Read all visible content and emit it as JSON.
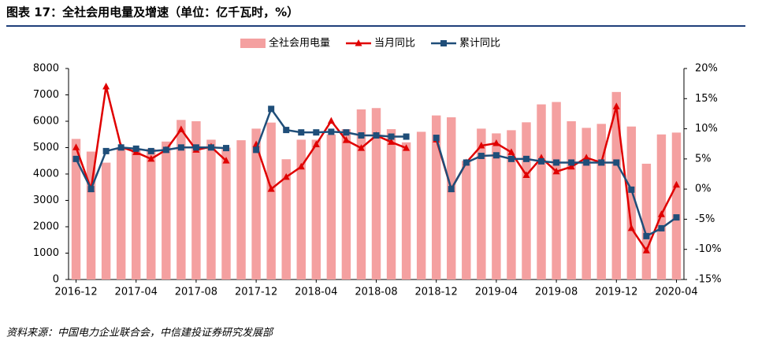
{
  "header": {
    "title": "图表 17：全社会用电量及增速（单位：亿千瓦时，%）"
  },
  "chart_data": {
    "type": "bar",
    "categories": [
      "2016-12",
      null,
      null,
      null,
      "2017-04",
      null,
      null,
      null,
      "2017-08",
      null,
      null,
      null,
      "2017-12",
      null,
      null,
      null,
      "2018-04",
      null,
      null,
      null,
      "2018-08",
      null,
      null,
      null,
      "2018-12",
      null,
      null,
      null,
      "2019-04",
      null,
      null,
      null,
      "2019-08",
      null,
      null,
      null,
      "2019-12",
      null,
      null,
      null,
      "2020-04"
    ],
    "series": [
      {
        "name": "全社会用电量",
        "type": "bar",
        "color": "#f4a0a0",
        "values": [
          5330,
          4850,
          4430,
          5000,
          4950,
          4950,
          5230,
          6050,
          6000,
          5300,
          5000,
          5280,
          5720,
          5950,
          4560,
          5300,
          5300,
          5500,
          5700,
          6450,
          6500,
          5700,
          5200,
          5600,
          6220,
          6150,
          4500,
          5720,
          5540,
          5660,
          5960,
          6640,
          6730,
          6000,
          5750,
          5900,
          7110,
          5800,
          4390,
          5500,
          5570
        ]
      },
      {
        "name": "当月同比",
        "type": "line",
        "axis": "y2",
        "marker": "triangle",
        "color": "#e00000",
        "values": [
          6.9,
          0,
          17,
          7,
          6.1,
          5,
          6.5,
          9.9,
          6.5,
          7,
          4.7,
          null,
          7.4,
          0,
          2,
          3.7,
          7.4,
          11.3,
          8.1,
          6.8,
          8.9,
          7.8,
          6.8,
          null,
          8.2,
          0,
          4.4,
          7.2,
          7.6,
          6.1,
          2.3,
          5.2,
          2.9,
          3.7,
          5.2,
          4.4,
          13.7,
          -6.5,
          -10.2,
          -4.2,
          0.7
        ]
      },
      {
        "name": "累计同比",
        "type": "line",
        "axis": "y2",
        "marker": "square",
        "color": "#1f4e79",
        "values": [
          5,
          0,
          6.3,
          6.9,
          6.7,
          6.3,
          6.5,
          6.9,
          6.9,
          6.9,
          6.8,
          null,
          6.5,
          13.3,
          9.8,
          9.4,
          9.4,
          9.5,
          9.4,
          8.9,
          8.9,
          8.7,
          8.7,
          null,
          8.5,
          0,
          4.4,
          5.5,
          5.6,
          5,
          5,
          4.6,
          4.4,
          4.4,
          4.4,
          4.4,
          4.4,
          -0.1,
          -7.8,
          -6.5,
          -4.7
        ]
      }
    ],
    "ylim": [
      0,
      8000
    ],
    "yticks": [
      0,
      1000,
      2000,
      3000,
      4000,
      5000,
      6000,
      7000,
      8000
    ],
    "y2lim": [
      -15,
      20
    ],
    "y2ticks": [
      {
        "value": -15,
        "label": "-15%"
      },
      {
        "value": -10,
        "label": "-10%"
      },
      {
        "value": -5,
        "label": "-5%"
      },
      {
        "value": 0,
        "label": "0%"
      },
      {
        "value": 5,
        "label": "5%"
      },
      {
        "value": 10,
        "label": "10%"
      },
      {
        "value": 15,
        "label": "15%"
      },
      {
        "value": 20,
        "label": "20%"
      }
    ],
    "legend": "top"
  },
  "footer": {
    "source": "资料来源：中国电力企业联合会，中信建投证券研究发展部"
  }
}
